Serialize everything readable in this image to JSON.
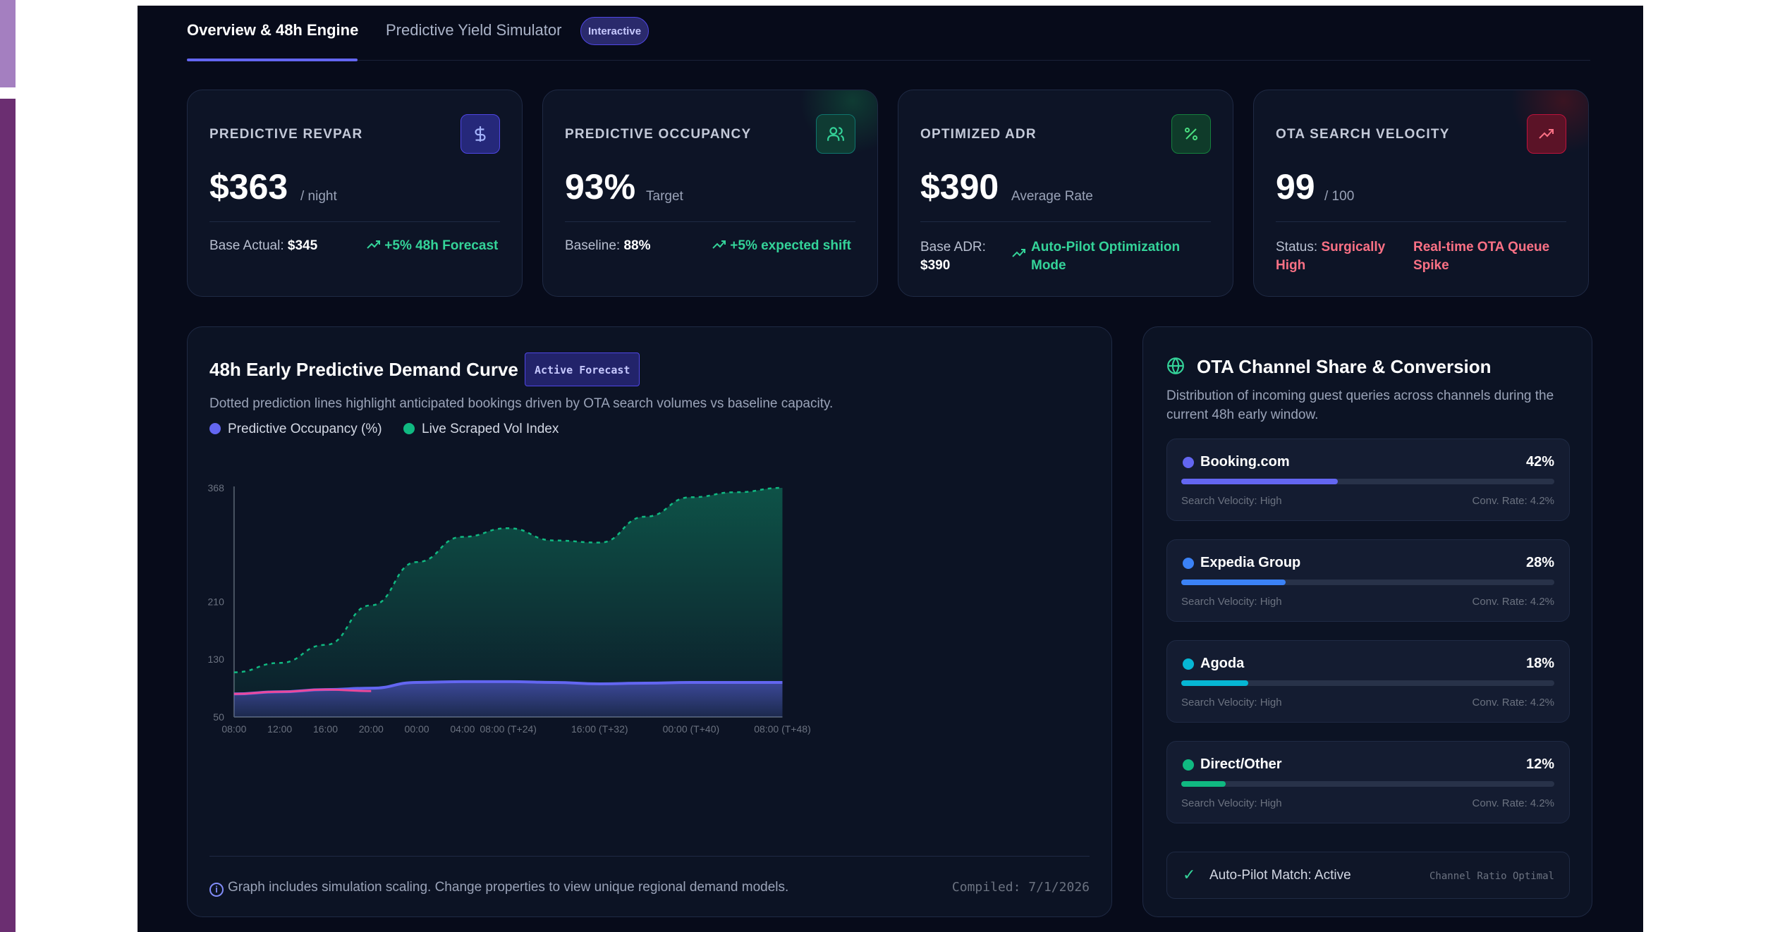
{
  "tabs": [
    {
      "label": "Overview & 48h Engine",
      "active": true
    },
    {
      "label": "Predictive Yield Simulator",
      "active": false,
      "badge": "Interactive"
    }
  ],
  "kpis": [
    {
      "label": "PREDICTIVE REVPAR",
      "icon": "dollar-icon",
      "value": "$363",
      "unit": "/ night",
      "base_label": "Base Actual:",
      "base_value": "$345",
      "trend": "+5% 48h Forecast",
      "trend_color": "#34d399"
    },
    {
      "label": "PREDICTIVE OCCUPANCY",
      "icon": "users-icon",
      "value": "93%",
      "unit": "Target",
      "base_label": "Baseline:",
      "base_value": "88%",
      "trend": "+5% expected shift",
      "trend_color": "#34d399"
    },
    {
      "label": "OPTIMIZED ADR",
      "icon": "percent-icon",
      "value": "$390",
      "unit": "Average Rate",
      "base_label": "Base ADR:",
      "base_value": "$390",
      "trend_line1": "Auto-Pilot Optimization",
      "trend_line2": "Mode",
      "trend_color": "#34d399"
    },
    {
      "label": "OTA SEARCH VELOCITY",
      "icon": "trending-up-icon",
      "value": "99",
      "unit": "/ 100",
      "status_label": "Status:",
      "status_line1": "Surgically",
      "status_line2": "High",
      "alert_line1": "Real-time OTA Queue",
      "alert_line2": "Spike",
      "alert_color": "#fb7185"
    }
  ],
  "demand_chart": {
    "title": "48h Early Predictive Demand Curve",
    "badge": "Active Forecast",
    "subtitle": "Dotted prediction lines highlight anticipated bookings driven by OTA search volumes vs baseline capacity.",
    "footnote": "Graph includes simulation scaling. Change properties to view unique regional demand models.",
    "compiled": "Compiled: 7/1/2026"
  },
  "chart_data": {
    "type": "area",
    "x": [
      "08:00",
      "12:00",
      "16:00",
      "20:00",
      "00:00",
      "04:00",
      "08:00 (T+24)",
      "12:00",
      "16:00 (T+32)",
      "20:00",
      "00:00 (T+40)",
      "04:00",
      "08:00 (T+48)"
    ],
    "x_tick_labels": [
      "08:00",
      "12:00",
      "16:00",
      "20:00",
      "00:00",
      "04:00",
      "08:00 (T+24)",
      "16:00 (T+32)",
      "00:00 (T+40)",
      "08:00 (T+48)"
    ],
    "y_ticks": [
      50,
      130,
      210,
      368
    ],
    "series": [
      {
        "name": "Predictive Occupancy (%)",
        "color": "#6366f1",
        "values": [
          82,
          85,
          88,
          90,
          98,
          99,
          99,
          98,
          96,
          97,
          98,
          98,
          98
        ]
      },
      {
        "name": "Live Scraped Vol Index",
        "color": "#10b981",
        "values": [
          112,
          125,
          150,
          205,
          265,
          300,
          312,
          295,
          292,
          328,
          355,
          362,
          368
        ]
      }
    ],
    "actual_segment": {
      "color": "#ec4899",
      "values": [
        82,
        85,
        88,
        86
      ]
    },
    "legend_position": "top-left",
    "grid": false
  },
  "ota": {
    "title": "OTA Channel Share & Conversion",
    "subtitle": "Distribution of incoming guest queries across channels during the current 48h early window.",
    "channels": [
      {
        "name": "Booking.com",
        "pct": "42%",
        "share": 0.42,
        "color": "#6366f1",
        "velocity": "Search Velocity: High",
        "conv": "Conv. Rate: 4.2%"
      },
      {
        "name": "Expedia Group",
        "pct": "28%",
        "share": 0.28,
        "color": "#3b82f6",
        "velocity": "Search Velocity: High",
        "conv": "Conv. Rate: 4.2%"
      },
      {
        "name": "Agoda",
        "pct": "18%",
        "share": 0.18,
        "color": "#06b6d4",
        "velocity": "Search Velocity: High",
        "conv": "Conv. Rate: 4.2%"
      },
      {
        "name": "Direct/Other",
        "pct": "12%",
        "share": 0.12,
        "color": "#10b981",
        "velocity": "Search Velocity: High",
        "conv": "Conv. Rate: 4.2%"
      }
    ],
    "autopilot": "Auto-Pilot Match: Active",
    "autopilot_status": "Channel Ratio Optimal"
  }
}
